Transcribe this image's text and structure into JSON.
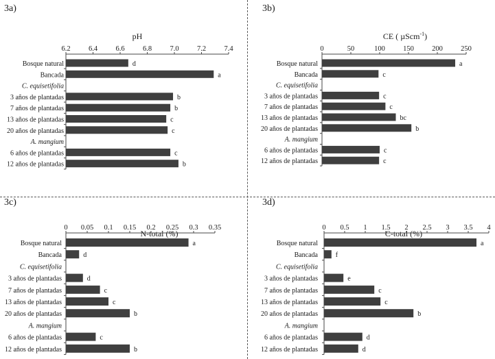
{
  "chart_data": [
    {
      "id": "panel-3a",
      "panel_label": "3a)",
      "type": "bar",
      "orientation": "horizontal",
      "title": "pH",
      "xlim": [
        6.2,
        7.4
      ],
      "ticks": [
        "6.2",
        "6.4",
        "6.6",
        "6.8",
        "7.0",
        "7.2",
        "7.4"
      ],
      "categories": [
        "Bosque natural",
        "Bancada",
        "C. equisetifolia",
        "3 años de plantadas",
        "7 años de plantadas",
        "13 años de plantadas",
        "20 años de plantadas",
        "A. mangium",
        "6 años de plantadas",
        "12 años de plantadas"
      ],
      "values": [
        6.66,
        7.29,
        null,
        6.99,
        6.97,
        6.94,
        6.95,
        null,
        6.97,
        7.03
      ],
      "letters": [
        "d",
        "a",
        "",
        "b",
        "b",
        "c",
        "c",
        "",
        "c",
        "b"
      ]
    },
    {
      "id": "panel-3b",
      "panel_label": "3b)",
      "type": "bar",
      "orientation": "horizontal",
      "title": "CE  ( µScm",
      "title_sup": "-1",
      "title_end": ")",
      "xlim": [
        0,
        250
      ],
      "ticks": [
        "0",
        "50",
        "100",
        "150",
        "200",
        "250"
      ],
      "categories": [
        "Bosque natural",
        "Bancada",
        "C. equisetifolia",
        "3 años de plantadas",
        "7 años de plantadas",
        "13 años de plantadas",
        "20 años de plantadas",
        "A. mangium",
        "6 años de plantadas",
        "12 años de plantadas"
      ],
      "values": [
        231,
        98,
        null,
        99,
        110,
        128,
        155,
        null,
        100,
        99
      ],
      "letters": [
        "a",
        "c",
        "",
        "c",
        "c",
        "bc",
        "b",
        "",
        "c",
        "c"
      ]
    },
    {
      "id": "panel-3c",
      "panel_label": "3c)",
      "type": "bar",
      "orientation": "horizontal",
      "title": "N-total (%)",
      "xlim": [
        0,
        0.35
      ],
      "ticks": [
        "0",
        "0.05",
        "0.1",
        "0.15",
        "0.2",
        "0.25",
        "0.3",
        "0.35"
      ],
      "categories": [
        "Bosque natural",
        "Bancada",
        "C. equisetifolia",
        "3 años de plantadas",
        "7 años de plantadas",
        "13 años de plantadas",
        "20 años de plantadas",
        "A. mangium",
        "6 años de plantadas",
        "12  años de plantadas"
      ],
      "values": [
        0.288,
        0.031,
        null,
        0.04,
        0.08,
        0.1,
        0.15,
        null,
        0.07,
        0.15
      ],
      "letters": [
        "a",
        "d",
        "",
        "d",
        "c",
        "c",
        "b",
        "",
        "c",
        "b"
      ]
    },
    {
      "id": "panel-3d",
      "panel_label": "3d)",
      "type": "bar",
      "orientation": "horizontal",
      "title": "C-total (%)",
      "xlim": [
        0,
        4
      ],
      "ticks": [
        "0",
        "0.5",
        "1",
        "1.5",
        "2",
        "2.5",
        "3",
        "3.5",
        "4"
      ],
      "categories": [
        "Bosque natural",
        "Bancada",
        "C. equisetifolia",
        "3 años de plantadas",
        "7 años de plantadas",
        "13  años de plantadas",
        "20 años de plantadas",
        "A. mangium",
        "6 años de plantadas",
        "12 años de plantadas"
      ],
      "values": [
        3.7,
        0.18,
        null,
        0.47,
        1.22,
        1.37,
        2.17,
        null,
        0.93,
        0.83
      ],
      "letters": [
        "a",
        "f",
        "",
        "e",
        "c",
        "c",
        "b",
        "",
        "d",
        "d"
      ]
    }
  ],
  "colors": {
    "bar": "#3f3f3f",
    "axis": "#444444",
    "text": "#1a1a1a"
  }
}
